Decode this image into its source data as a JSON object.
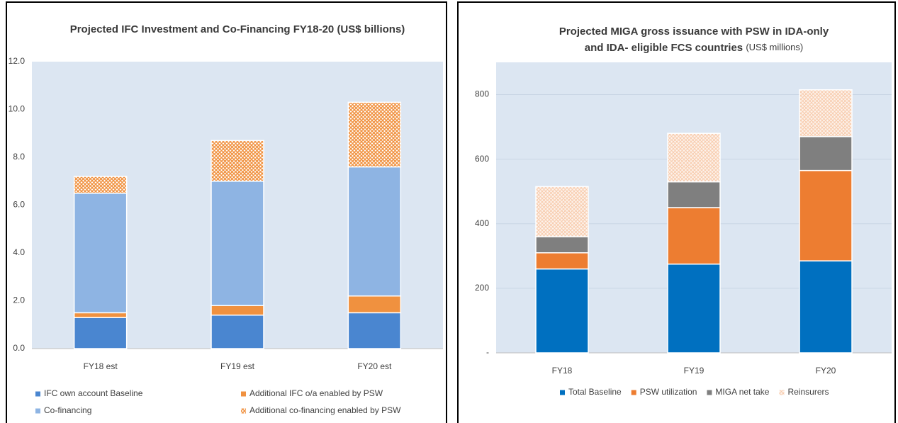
{
  "chart_data": [
    {
      "type": "bar",
      "stacked": true,
      "title": [
        "Projected IFC Investment and Co-Financing FY18-20 (US$ billions)"
      ],
      "categories": [
        "FY18 est",
        "FY19 est",
        "FY20 est"
      ],
      "series": [
        {
          "name": "IFC  own account Baseline",
          "color": "#4a86d0",
          "values": [
            1.3,
            1.4,
            1.5
          ]
        },
        {
          "name": "Additional IFC o/a enabled by PSW",
          "color": "#f0913f",
          "values": [
            0.2,
            0.4,
            0.7
          ]
        },
        {
          "name": "Co-financing",
          "color": "#8eb4e3",
          "values": [
            5.0,
            5.2,
            5.4
          ]
        },
        {
          "name": "Additional co-financing enabled by PSW",
          "color": "#f0913f",
          "pattern": "hatch",
          "values": [
            0.7,
            1.7,
            2.7
          ]
        }
      ],
      "ylim": [
        0,
        12
      ],
      "yticks": [
        {
          "value": 0,
          "label": "0.0"
        },
        {
          "value": 2,
          "label": "2.0"
        },
        {
          "value": 4,
          "label": "4.0"
        },
        {
          "value": 6,
          "label": "6.0"
        },
        {
          "value": 8,
          "label": "8.0"
        },
        {
          "value": 10,
          "label": "10.0"
        },
        {
          "value": 12,
          "label": "12.0"
        }
      ],
      "grid": false,
      "legend": "bottom"
    },
    {
      "type": "bar",
      "stacked": true,
      "title": [
        "Projected MIGA gross issuance with PSW in IDA-only",
        "and IDA- eligible FCS countries"
      ],
      "subtitle": "(US$ millions)",
      "categories": [
        "FY18",
        "FY19",
        "FY20"
      ],
      "series": [
        {
          "name": "Total Baseline",
          "color": "#0070c0",
          "values": [
            260,
            275,
            285
          ]
        },
        {
          "name": "PSW utilization",
          "color": "#ed7d31",
          "values": [
            50,
            175,
            280
          ]
        },
        {
          "name": "MIGA net take",
          "color": "#7f7f7f",
          "values": [
            50,
            80,
            105
          ]
        },
        {
          "name": "Reinsurers",
          "color": "#f8cbad",
          "pattern": "hatch",
          "values": [
            155,
            150,
            145
          ]
        }
      ],
      "ylim": [
        0,
        900
      ],
      "yticks": [
        {
          "value": 0,
          "label": "-"
        },
        200,
        400,
        600,
        800
      ],
      "grid": true,
      "legend": "bottom"
    }
  ]
}
